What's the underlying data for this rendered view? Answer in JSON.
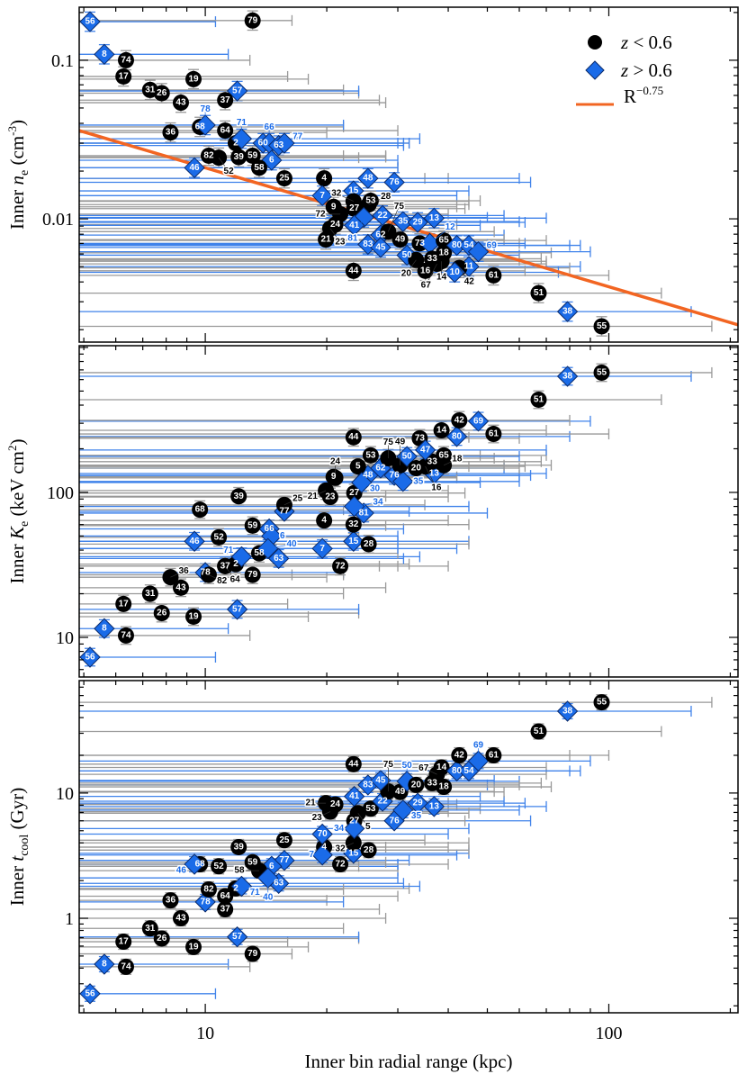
{
  "chart_data": {
    "type": "scatter",
    "x_scale": "log",
    "y_scale": "log",
    "xlabel": "Inner bin radial range (kpc)",
    "xlim": [
      4.87,
      209
    ],
    "xticks": [
      "10",
      "100"
    ],
    "colors": {
      "low_z": "#000000",
      "high_z": "#1a6be8",
      "low_z_bar": "#999999",
      "high_z_bar": "#3f82ea",
      "fit": "#f26522"
    },
    "legend": {
      "placement": "top-right (top panel)",
      "items": [
        {
          "marker": "circle",
          "sym": "z",
          "text": " < 0.6"
        },
        {
          "marker": "diamond",
          "sym": "z",
          "text": " > 0.6"
        },
        {
          "marker": "line",
          "sym": "R",
          "sup": "−0.75"
        }
      ]
    },
    "fit": {
      "panel": "ne",
      "form": "A*R^-0.75",
      "A": 0.118
    },
    "panels": [
      {
        "key": "ne",
        "ylim": [
          0.00167,
          0.216
        ],
        "yticks": [
          {
            "v": 0.1,
            "t": "0.1"
          },
          {
            "v": 0.01,
            "t": "0.01"
          }
        ],
        "ylabel": {
          "pre": "Inner ",
          "sym": "n",
          "sub": "e",
          "post": " (cm",
          "sup": "-3",
          "end": ")"
        }
      },
      {
        "key": "K",
        "ylim": [
          5.33,
          1028
        ],
        "yticks": [
          {
            "v": 100,
            "t": "100"
          },
          {
            "v": 10,
            "t": "10"
          }
        ],
        "ylabel": {
          "pre": "Inner ",
          "sym": "K",
          "sub": "e",
          "post": " (keV cm",
          "sup": "2",
          "end": ")"
        }
      },
      {
        "key": "t",
        "ylim": [
          0.176,
          79
        ],
        "yticks": [
          {
            "v": 10,
            "t": "10"
          },
          {
            "v": 1,
            "t": "1"
          }
        ],
        "ylabel": {
          "pre": "Inner ",
          "sym": "t",
          "sub": "cool",
          "post": " (Gyr)",
          "sup": "",
          "end": ""
        }
      }
    ],
    "columns": [
      "id",
      "high_z",
      "r_kpc",
      "r_max_kpc",
      "ne",
      "K",
      "t"
    ],
    "points": [
      [
        "56",
        1,
        5.18,
        10.6,
        0.175,
        7.3,
        0.25
      ],
      [
        "79",
        0,
        13.1,
        16.4,
        0.178,
        27,
        0.52
      ],
      [
        "8",
        1,
        5.62,
        11.4,
        0.109,
        11.5,
        0.43
      ],
      [
        "74",
        0,
        6.36,
        12.9,
        0.1,
        10.3,
        0.41
      ],
      [
        "17",
        0,
        6.27,
        16,
        0.079,
        17,
        0.65
      ],
      [
        "19",
        0,
        9.35,
        18,
        0.076,
        13.9,
        0.59
      ],
      [
        "31",
        0,
        7.3,
        22,
        0.065,
        20,
        0.83
      ],
      [
        "26",
        0,
        7.8,
        24,
        0.062,
        14.7,
        0.69
      ],
      [
        "43",
        0,
        8.7,
        28,
        0.054,
        22,
        1.0
      ],
      [
        "57",
        1,
        12.0,
        24,
        0.064,
        15.6,
        0.71
      ],
      [
        "37",
        0,
        11.2,
        27,
        0.056,
        31,
        1.18
      ],
      [
        "36",
        0,
        8.2,
        20,
        0.035,
        26,
        1.39
      ],
      [
        "68",
        0,
        9.7,
        22,
        0.038,
        76,
        2.7
      ],
      [
        "78",
        1,
        10.0,
        22,
        0.039,
        28,
        1.35
      ],
      [
        "64",
        0,
        11.2,
        30,
        0.036,
        31,
        1.5
      ],
      [
        "2",
        0,
        11.9,
        32,
        0.03,
        32,
        1.73
      ],
      [
        "71",
        1,
        12.3,
        34,
        0.032,
        36,
        1.8
      ],
      [
        "60",
        1,
        13.9,
        30,
        0.03,
        null,
        null
      ],
      [
        "66",
        1,
        14.4,
        31,
        0.03,
        56,
        null
      ],
      [
        "63",
        1,
        15.2,
        31,
        0.029,
        35,
        1.9
      ],
      [
        "77",
        1,
        15.7,
        32,
        0.03,
        74,
        2.9
      ],
      [
        "6",
        1,
        14.6,
        30,
        0.0234,
        50,
        2.6
      ],
      [
        "82",
        0,
        10.2,
        22,
        0.025,
        27,
        1.7
      ],
      [
        "52",
        0,
        10.8,
        24,
        0.0243,
        49,
        2.6
      ],
      [
        "39",
        0,
        12.1,
        28,
        0.0245,
        94,
        3.7
      ],
      [
        "59",
        0,
        13.1,
        28,
        0.025,
        59,
        2.8
      ],
      [
        "58",
        0,
        13.6,
        30,
        0.021,
        38,
        2.4
      ],
      [
        "46",
        1,
        9.4,
        30,
        0.021,
        46,
        2.7
      ],
      [
        "25",
        0,
        15.7,
        35,
        0.018,
        82,
        4.2
      ],
      [
        "4",
        0,
        19.7,
        40,
        0.018,
        64,
        3.7
      ],
      [
        "7",
        1,
        19.5,
        42,
        0.014,
        41,
        3.2
      ],
      [
        "70",
        1,
        19.5,
        40,
        null,
        null,
        4.7
      ],
      [
        "15",
        1,
        23.3,
        45,
        0.015,
        46,
        3.3
      ],
      [
        "48",
        1,
        25.3,
        60,
        0.018,
        131,
        null
      ],
      [
        "76",
        1,
        29.4,
        64,
        0.017,
        131,
        6.0
      ],
      [
        "32",
        0,
        23.3,
        45,
        0.0129,
        60,
        4.0
      ],
      [
        "53",
        0,
        25.7,
        48,
        0.013,
        180,
        7.5
      ],
      [
        "27",
        0,
        23.4,
        44,
        0.0116,
        99,
        6.0
      ],
      [
        "28",
        0,
        25.4,
        45,
        0.0123,
        44,
        3.5
      ],
      [
        "9",
        0,
        20.8,
        42,
        0.0119,
        128,
        null
      ],
      [
        "72",
        0,
        21.6,
        40,
        0.0107,
        31,
        2.7
      ],
      [
        "24",
        0,
        21.0,
        42,
        0.0092,
        126,
        8.1
      ],
      [
        "23",
        0,
        20.4,
        40,
        0.0087,
        93,
        7.1
      ],
      [
        "21",
        0,
        19.9,
        40,
        0.0074,
        103,
        8.3
      ],
      [
        "81",
        1,
        24.7,
        50,
        0.0102,
        72,
        null
      ],
      [
        "22",
        1,
        27.5,
        55,
        0.0105,
        null,
        8.6
      ],
      [
        "41",
        1,
        23.4,
        48,
        0.0091,
        null,
        9.4
      ],
      [
        "35",
        1,
        30.9,
        60,
        0.0096,
        119,
        7.3
      ],
      [
        "29",
        1,
        33.6,
        62,
        0.0095,
        null,
        8.3
      ],
      [
        "13",
        1,
        36.9,
        70,
        0.0101,
        135,
        7.8
      ],
      [
        "62",
        1,
        27.2,
        55,
        0.0079,
        147,
        null
      ],
      [
        "75",
        0,
        28.4,
        52,
        0.0083,
        172,
        10.3
      ],
      [
        "49",
        0,
        30.4,
        55,
        0.0074,
        154,
        10.2
      ],
      [
        "83",
        1,
        25.3,
        50,
        0.0069,
        null,
        11.6
      ],
      [
        "45",
        1,
        27.2,
        52,
        0.0066,
        null,
        12.6
      ],
      [
        "73",
        0,
        34.0,
        60,
        0.007,
        236,
        null
      ],
      [
        "12",
        1,
        36.0,
        62,
        0.007,
        null,
        null
      ],
      [
        "65",
        0,
        39.0,
        70,
        0.0073,
        180,
        null
      ],
      [
        "50",
        1,
        31.6,
        60,
        0.0059,
        177,
        12.4
      ],
      [
        "20",
        0,
        33.3,
        60,
        0.0055,
        147,
        11.6
      ],
      [
        "18",
        0,
        39.0,
        72,
        0.0061,
        154,
        11.2
      ],
      [
        "33",
        0,
        36.5,
        68,
        0.0056,
        163,
        12
      ],
      [
        "14",
        0,
        38.5,
        70,
        0.0054,
        268,
        16
      ],
      [
        "67",
        0,
        37.5,
        70,
        0.0052,
        null,
        14.1
      ],
      [
        "80",
        1,
        42.0,
        80,
        0.0068,
        243,
        15
      ],
      [
        "40",
        1,
        14.3,
        30,
        null,
        41,
        2.1
      ],
      [
        "54",
        1,
        45.0,
        85,
        0.0068,
        null,
        15
      ],
      [
        "69",
        1,
        47.5,
        90,
        0.0062,
        310,
        18
      ],
      [
        "11",
        1,
        45.0,
        85,
        0.005,
        null,
        null
      ],
      [
        "42",
        0,
        42.6,
        80,
        0.0049,
        314,
        20
      ],
      [
        "10",
        1,
        41.5,
        75,
        0.0046,
        null,
        null
      ],
      [
        "16",
        0,
        35.1,
        62,
        0.0047,
        151,
        null
      ],
      [
        "44",
        0,
        23.3,
        45,
        0.0047,
        240,
        17
      ],
      [
        "61",
        0,
        51.8,
        100,
        0.0044,
        253,
        20
      ],
      [
        "51",
        0,
        67,
        135,
        0.0034,
        436,
        31
      ],
      [
        "38",
        1,
        79,
        160,
        0.0026,
        632,
        45
      ],
      [
        "55",
        0,
        96,
        180,
        0.0021,
        670,
        53
      ],
      [
        "5",
        0,
        23.9,
        45,
        null,
        151,
        6.9
      ],
      [
        "47",
        1,
        35.1,
        70,
        null,
        196,
        null
      ],
      [
        "30",
        1,
        24.4,
        48,
        null,
        117,
        null
      ],
      [
        "34",
        1,
        23.4,
        45,
        null,
        80,
        5.2
      ]
    ]
  }
}
